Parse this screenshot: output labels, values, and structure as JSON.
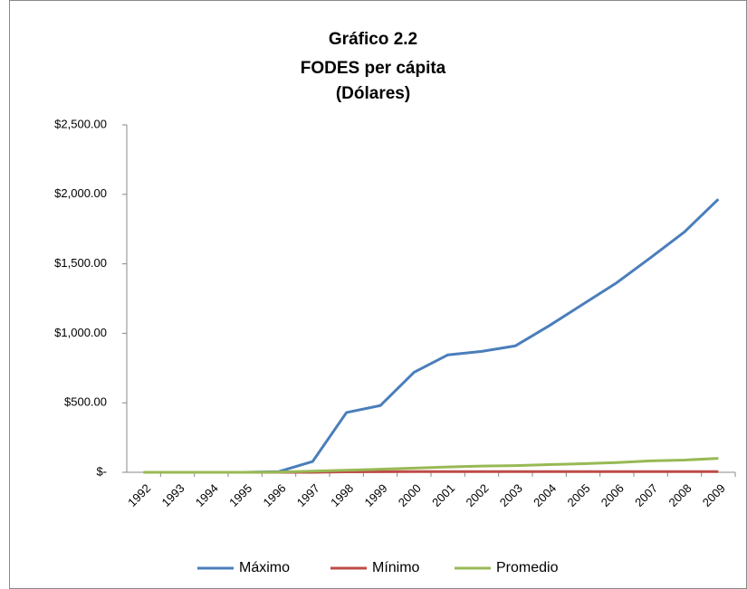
{
  "chart_data": {
    "type": "line",
    "title": [
      "Gráfico 2.2",
      "FODES  per cápita",
      "(Dólares)"
    ],
    "categories": [
      "1992",
      "1993",
      "1994",
      "1995",
      "1996",
      "1997",
      "1998",
      "1999",
      "2000",
      "2001",
      "2002",
      "2003",
      "2004",
      "2005",
      "2006",
      "2007",
      "2008",
      "2009"
    ],
    "series": [
      {
        "name": "Máximo",
        "color": "#4a7ebb",
        "values": [
          0,
          0,
          0,
          0,
          5,
          78,
          430,
          480,
          720,
          845,
          870,
          910,
          1055,
          1210,
          1365,
          1545,
          1730,
          1965
        ]
      },
      {
        "name": "Mínimo",
        "color": "#be4b48",
        "values": [
          0,
          0,
          0,
          0,
          0,
          0,
          3,
          4,
          5,
          5,
          5,
          5,
          5,
          5,
          5,
          5,
          5,
          5
        ]
      },
      {
        "name": "Promedio",
        "color": "#98b954",
        "values": [
          0,
          0,
          0,
          0,
          2,
          8,
          15,
          22,
          30,
          38,
          45,
          48,
          55,
          62,
          70,
          82,
          88,
          100
        ]
      }
    ],
    "ylim": [
      0,
      2500
    ],
    "yticks": [
      {
        "value": 0,
        "label": "$-"
      },
      {
        "value": 500,
        "label": "$500.00"
      },
      {
        "value": 1000,
        "label": "$1,000.00"
      },
      {
        "value": 1500,
        "label": "$1,500.00"
      },
      {
        "value": 2000,
        "label": "$2,000.00"
      },
      {
        "value": 2500,
        "label": "$2,500.00"
      }
    ],
    "grid": false,
    "legend": "bottom"
  }
}
